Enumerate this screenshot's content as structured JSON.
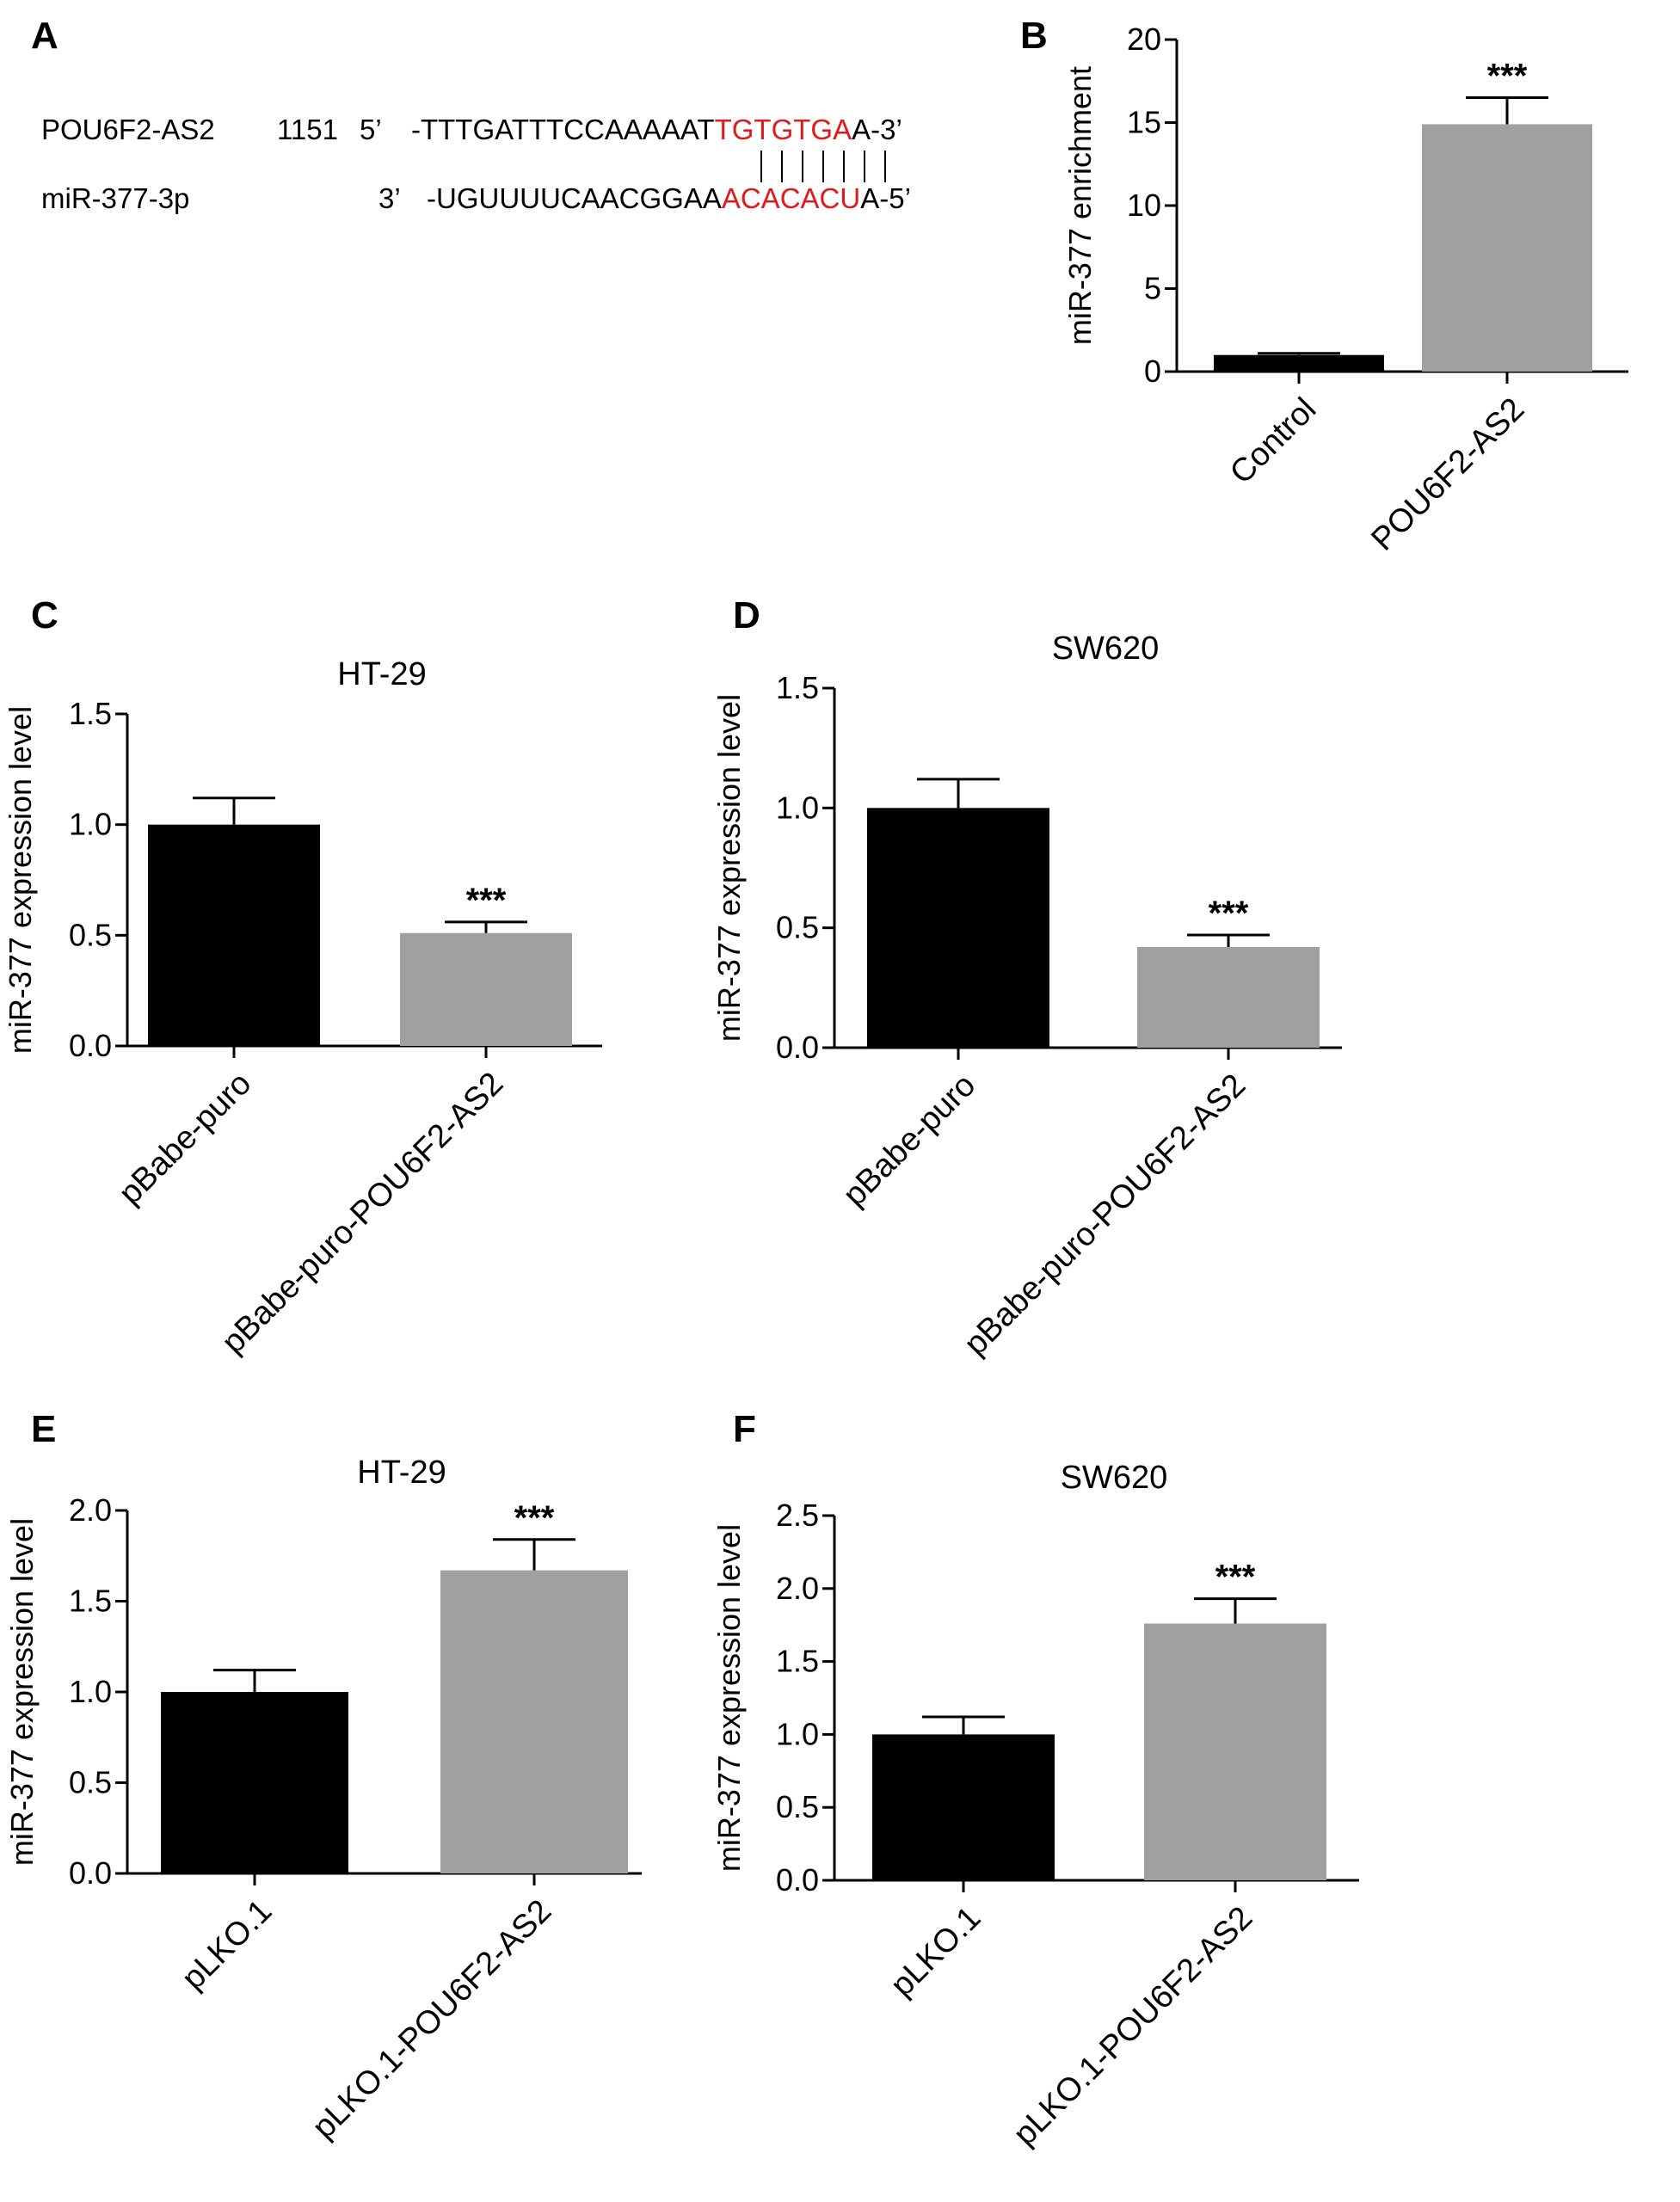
{
  "panel_a": {
    "letter": "A",
    "row1": {
      "name": "POU6F2-AS2",
      "position": "1151",
      "end5": "5’",
      "seq_prefix": "-TTTGATTTCCAAAAAT",
      "seq_match": "TGTGTGA",
      "seq_suffix": "A-3’"
    },
    "row2": {
      "name": "miR-377-3p",
      "end3": "3’",
      "seq_prefix": "-UGUUUUCAACGGAA",
      "seq_match": "ACACACU",
      "seq_suffix": "A-5’"
    },
    "pair_lines": 7
  },
  "colors": {
    "bar_black": "#000000",
    "bar_gray": "#a0a0a0",
    "highlight_red": "#e31a1c"
  },
  "chart_data": [
    {
      "panel": "B",
      "type": "bar",
      "title": "",
      "ylabel": "miR-377 enrichment",
      "categories": [
        "Control",
        "POU6F2-AS2"
      ],
      "values": [
        1.0,
        14.9
      ],
      "errors": [
        0.1,
        1.6
      ],
      "significance": [
        "",
        "***"
      ],
      "ylim": [
        0,
        20
      ],
      "yticks": [
        "0",
        "5",
        "10",
        "15",
        "20"
      ],
      "ytick_values": [
        0,
        5,
        10,
        15,
        20
      ]
    },
    {
      "panel": "C",
      "type": "bar",
      "title": "HT-29",
      "ylabel": "miR-377 expression level",
      "categories": [
        "pBabe-puro",
        "pBabe-puro-POU6F2-AS2"
      ],
      "values": [
        1.0,
        0.51
      ],
      "errors": [
        0.12,
        0.05
      ],
      "significance": [
        "",
        "***"
      ],
      "ylim": [
        0,
        1.5
      ],
      "yticks": [
        "0.0",
        "0.5",
        "1.0",
        "1.5"
      ],
      "ytick_values": [
        0,
        0.5,
        1.0,
        1.5
      ]
    },
    {
      "panel": "D",
      "type": "bar",
      "title": "SW620",
      "ylabel": "miR-377 expression level",
      "categories": [
        "pBabe-puro",
        "pBabe-puro-POU6F2-AS2"
      ],
      "values": [
        1.0,
        0.42
      ],
      "errors": [
        0.12,
        0.05
      ],
      "significance": [
        "",
        "***"
      ],
      "ylim": [
        0,
        1.5
      ],
      "yticks": [
        "0.0",
        "0.5",
        "1.0",
        "1.5"
      ],
      "ytick_values": [
        0,
        0.5,
        1.0,
        1.5
      ]
    },
    {
      "panel": "E",
      "type": "bar",
      "title": "HT-29",
      "ylabel": "miR-377 expression level",
      "categories": [
        "pLKO.1",
        "pLKO.1-POU6F2-AS2"
      ],
      "values": [
        1.0,
        1.67
      ],
      "errors": [
        0.12,
        0.17
      ],
      "significance": [
        "",
        "***"
      ],
      "ylim": [
        0,
        2.0
      ],
      "yticks": [
        "0.0",
        "0.5",
        "1.0",
        "1.5",
        "2.0"
      ],
      "ytick_values": [
        0,
        0.5,
        1.0,
        1.5,
        2.0
      ]
    },
    {
      "panel": "F",
      "type": "bar",
      "title": "SW620",
      "ylabel": "miR-377 expression level",
      "categories": [
        "pLKO.1",
        "pLKO.1-POU6F2-AS2"
      ],
      "values": [
        1.0,
        1.76
      ],
      "errors": [
        0.12,
        0.17
      ],
      "significance": [
        "",
        "***"
      ],
      "ylim": [
        0,
        2.5
      ],
      "yticks": [
        "0.0",
        "0.5",
        "1.0",
        "1.5",
        "2.0",
        "2.5"
      ],
      "ytick_values": [
        0,
        0.5,
        1.0,
        1.5,
        2.0,
        2.5
      ]
    }
  ]
}
